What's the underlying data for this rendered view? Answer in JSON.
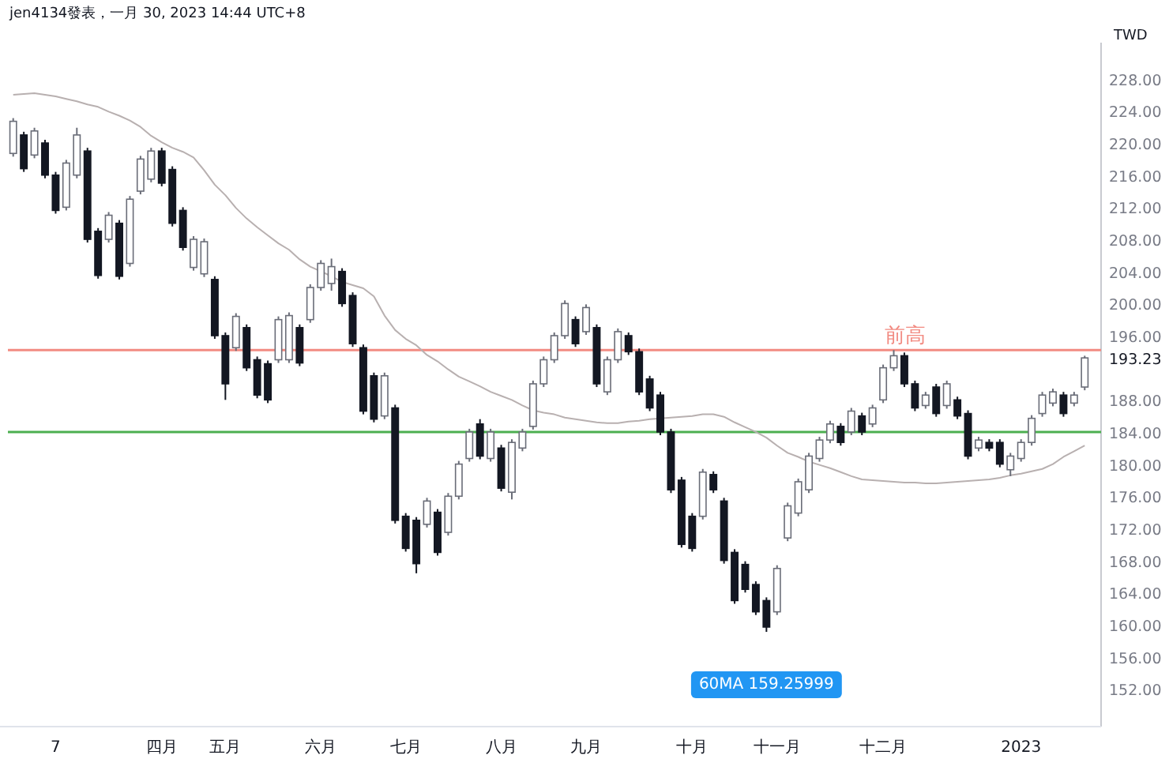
{
  "chart_data": {
    "type": "candlestick",
    "title": "jen4134發表，一月 30, 2023 14:44 UTC+8",
    "ylabel": "TWD",
    "categories": [
      null,
      null,
      null,
      null,
      "7",
      null,
      null,
      null,
      null,
      null,
      null,
      null,
      null,
      null,
      "四月",
      null,
      null,
      null,
      null,
      null,
      "五月",
      null,
      null,
      null,
      null,
      null,
      null,
      null,
      null,
      "六月",
      null,
      null,
      null,
      null,
      null,
      null,
      null,
      "七月",
      null,
      null,
      null,
      null,
      null,
      null,
      null,
      null,
      "八月",
      null,
      null,
      null,
      null,
      null,
      null,
      null,
      "九月",
      null,
      null,
      null,
      null,
      null,
      null,
      null,
      null,
      null,
      "十月",
      null,
      null,
      null,
      null,
      null,
      null,
      null,
      "十一月",
      null,
      null,
      null,
      null,
      null,
      null,
      null,
      null,
      null,
      "十二月",
      null,
      null,
      null,
      null,
      null,
      null,
      null,
      null,
      null,
      null,
      null,
      null,
      "2023",
      null,
      null,
      null,
      null,
      null,
      null
    ],
    "ohlc": [
      [
        218.7,
        223.1,
        218.3,
        222.7
      ],
      [
        221,
        221.4,
        216.4,
        216.8
      ],
      [
        218.5,
        221.9,
        218.1,
        221.5
      ],
      [
        220,
        220.4,
        215.6,
        216
      ],
      [
        216,
        216.4,
        211.2,
        211.6
      ],
      [
        212,
        217.9,
        211.6,
        217.5
      ],
      [
        216,
        221.9,
        215.6,
        221
      ],
      [
        219,
        219.4,
        207.6,
        208
      ],
      [
        209,
        209.4,
        203.1,
        203.5
      ],
      [
        208,
        211.4,
        207.6,
        211
      ],
      [
        210,
        210.4,
        203,
        203.4
      ],
      [
        205,
        213.4,
        204.6,
        213
      ],
      [
        214,
        218.4,
        213.6,
        218
      ],
      [
        215.5,
        219.4,
        215.1,
        219
      ],
      [
        219,
        219.4,
        214.6,
        215
      ],
      [
        216.7,
        217.1,
        209.6,
        210
      ],
      [
        211.6,
        212,
        206.6,
        207
      ],
      [
        204.5,
        208.4,
        204.1,
        208
      ],
      [
        203.7,
        208.1,
        203.3,
        207.7
      ],
      [
        203,
        203.4,
        195.6,
        196
      ],
      [
        196,
        196.4,
        188,
        190
      ],
      [
        194.5,
        198.8,
        194.1,
        198.4
      ],
      [
        197,
        197.4,
        191.6,
        192
      ],
      [
        193,
        193.4,
        188.2,
        188.6
      ],
      [
        192.5,
        192.9,
        187.6,
        188
      ],
      [
        193,
        198.4,
        192.6,
        198
      ],
      [
        193,
        198.9,
        192.6,
        198.5
      ],
      [
        197,
        197.4,
        192.2,
        192.6
      ],
      [
        198,
        202.4,
        197.6,
        202
      ],
      [
        202,
        205.4,
        201.6,
        205
      ],
      [
        202.5,
        205.6,
        201.6,
        204.6
      ],
      [
        204,
        204.4,
        199.6,
        200
      ],
      [
        201,
        201.4,
        194.6,
        195
      ],
      [
        194.5,
        194.9,
        186.2,
        186.6
      ],
      [
        191,
        191.4,
        185.2,
        185.6
      ],
      [
        186,
        191.4,
        185.6,
        191
      ],
      [
        187,
        187.4,
        172.6,
        173
      ],
      [
        173.5,
        173.9,
        169.1,
        169.5
      ],
      [
        173,
        173.4,
        166.4,
        167.6
      ],
      [
        172.5,
        175.8,
        172.1,
        175.4
      ],
      [
        174,
        174.4,
        168.6,
        169
      ],
      [
        171.5,
        176.4,
        171.1,
        176
      ],
      [
        176,
        180.4,
        175.6,
        180
      ],
      [
        180.7,
        184.4,
        180.3,
        184
      ],
      [
        185,
        185.6,
        180.6,
        181
      ],
      [
        180.7,
        184.4,
        180.3,
        184
      ],
      [
        182,
        182.4,
        176.6,
        177
      ],
      [
        176.5,
        183.1,
        175.6,
        182.7
      ],
      [
        182,
        184.4,
        181.6,
        184
      ],
      [
        184.7,
        190.4,
        184.3,
        190
      ],
      [
        190,
        193.4,
        189.6,
        193
      ],
      [
        193,
        196.4,
        192.6,
        196
      ],
      [
        196,
        200.4,
        195.6,
        200
      ],
      [
        198,
        198.4,
        194.6,
        195
      ],
      [
        196.5,
        199.9,
        196.1,
        199.5
      ],
      [
        197,
        197.4,
        189.6,
        190
      ],
      [
        189,
        193.4,
        188.6,
        193
      ],
      [
        193,
        196.9,
        192.6,
        196.5
      ],
      [
        196,
        196.4,
        193.6,
        194
      ],
      [
        194,
        194.4,
        188.6,
        189
      ],
      [
        190.6,
        191,
        186.6,
        187
      ],
      [
        188.6,
        189,
        183.6,
        184
      ],
      [
        184,
        184.4,
        176.4,
        176.8
      ],
      [
        178,
        178.4,
        169.6,
        170
      ],
      [
        173.5,
        173.9,
        169.1,
        169.5
      ],
      [
        173.5,
        179.4,
        173.1,
        179
      ],
      [
        178.7,
        179.1,
        176.4,
        176.8
      ],
      [
        175.4,
        175.8,
        167.6,
        168
      ],
      [
        169,
        169.4,
        162.6,
        163
      ],
      [
        167.5,
        167.9,
        164,
        164.4
      ],
      [
        165,
        165.4,
        161.2,
        161.6
      ],
      [
        163,
        163.4,
        159.1,
        159.7
      ],
      [
        161.6,
        167.4,
        161.2,
        167
      ],
      [
        170.8,
        175.2,
        170.4,
        174.8
      ],
      [
        173.9,
        178.2,
        173.5,
        177.8
      ],
      [
        176.8,
        181.4,
        176.4,
        181
      ],
      [
        180.7,
        183.4,
        180.3,
        183
      ],
      [
        183,
        185.4,
        182.6,
        185
      ],
      [
        184.7,
        185.1,
        182.3,
        182.7
      ],
      [
        184,
        187,
        183.6,
        186.6
      ],
      [
        186,
        186.4,
        183.6,
        184
      ],
      [
        185,
        187.4,
        184.6,
        187
      ],
      [
        188,
        192.4,
        187.6,
        192
      ],
      [
        192,
        194.2,
        191.6,
        193.5
      ],
      [
        193.5,
        193.9,
        189.6,
        190
      ],
      [
        190,
        190.4,
        186.6,
        187
      ],
      [
        187.3,
        189,
        186.9,
        188.6
      ],
      [
        189.6,
        190,
        185.9,
        186.3
      ],
      [
        187.3,
        190.4,
        186.9,
        190
      ],
      [
        188,
        188.4,
        185.6,
        186
      ],
      [
        186.3,
        186.7,
        180.6,
        181
      ],
      [
        182,
        183.4,
        181.6,
        183
      ],
      [
        182.7,
        183.1,
        181.6,
        182
      ],
      [
        182.7,
        183.1,
        179.6,
        180
      ],
      [
        179.3,
        181.4,
        178.5,
        181
      ],
      [
        180.7,
        183.1,
        180.3,
        182.7
      ],
      [
        182.7,
        186.1,
        182.3,
        185.7
      ],
      [
        186.3,
        189,
        185.9,
        188.6
      ],
      [
        187.6,
        189.4,
        187.2,
        189
      ],
      [
        188.6,
        189,
        185.9,
        186.3
      ],
      [
        187.6,
        189,
        187.2,
        188.6
      ],
      [
        189.6,
        193.5,
        189.2,
        193.23
      ]
    ],
    "series": [
      {
        "type": "line",
        "color": "#b8b0b0",
        "values": [
          226.0,
          226.1,
          226.2,
          226.0,
          225.8,
          225.5,
          225.2,
          224.8,
          224.5,
          223.9,
          223.4,
          222.8,
          222.0,
          220.9,
          220.1,
          219.4,
          218.9,
          218.2,
          216.6,
          214.8,
          213.5,
          211.9,
          210.6,
          209.5,
          208.5,
          207.5,
          206.7,
          205.5,
          204.6,
          204.0,
          203.4,
          202.7,
          202.3,
          201.9,
          200.9,
          198.5,
          196.7,
          195.6,
          194.8,
          193.6,
          192.8,
          191.8,
          190.9,
          190.3,
          189.7,
          189.0,
          188.5,
          188.0,
          187.3,
          186.7,
          186.4,
          186.2,
          185.8,
          185.6,
          185.4,
          185.2,
          185.1,
          185.1,
          185.3,
          185.4,
          185.6,
          185.7,
          185.8,
          185.9,
          186.0,
          186.2,
          186.2,
          185.9,
          185.2,
          184.6,
          184.0,
          183.3,
          182.3,
          181.4,
          180.9,
          180.3,
          179.9,
          179.5,
          179.0,
          178.5,
          178.1,
          178.0,
          177.9,
          177.8,
          177.7,
          177.7,
          177.6,
          177.6,
          177.7,
          177.8,
          177.9,
          178.0,
          178.1,
          178.3,
          178.6,
          178.8,
          179.1,
          179.4,
          180.0,
          180.9,
          181.6,
          182.3
        ]
      }
    ],
    "ylim": [
      147.3,
      232.5
    ],
    "yticks": [
      {
        "value": 152,
        "label": "152.00"
      },
      {
        "value": 156,
        "label": "156.00"
      },
      {
        "value": 160,
        "label": "160.00"
      },
      {
        "value": 164,
        "label": "164.00"
      },
      {
        "value": 168,
        "label": "168.00"
      },
      {
        "value": 172,
        "label": "172.00"
      },
      {
        "value": 176,
        "label": "176.00"
      },
      {
        "value": 180,
        "label": "180.00"
      },
      {
        "value": 184,
        "label": "184.00"
      },
      {
        "value": 188,
        "label": "188.00"
      },
      {
        "value": 193.23,
        "label": "193.23"
      },
      {
        "value": 196,
        "label": "196.00"
      },
      {
        "value": 200,
        "label": "200.00"
      },
      {
        "value": 204,
        "label": "204.00"
      },
      {
        "value": 208,
        "label": "208.00"
      },
      {
        "value": 212,
        "label": "212.00"
      },
      {
        "value": 216,
        "label": "216.00"
      },
      {
        "value": 220,
        "label": "220.00"
      },
      {
        "value": 224,
        "label": "224.00"
      },
      {
        "value": 228,
        "label": "228.00"
      }
    ],
    "ref_lines": [
      {
        "axis": "y",
        "value": 184,
        "color": "#4caf50"
      },
      {
        "axis": "y",
        "value": 194.2,
        "label": "前高",
        "color": "#f28b82"
      }
    ],
    "annotations": [
      "60MA 159.25999"
    ],
    "grid": false
  }
}
